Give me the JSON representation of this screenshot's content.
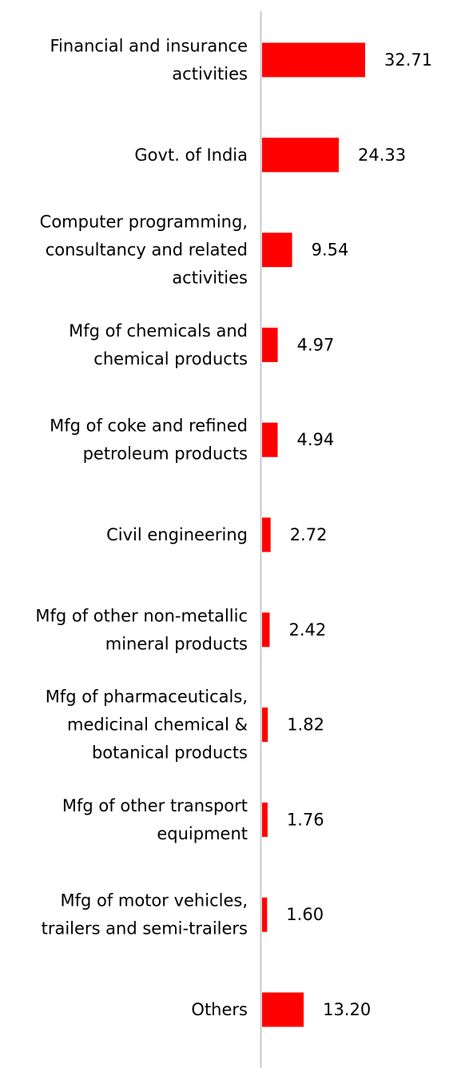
{
  "chart_data": {
    "type": "bar",
    "orientation": "horizontal",
    "title": "",
    "xlabel": "",
    "ylabel": "",
    "grid": false,
    "legend": "none",
    "bar_color": "#ff0000",
    "axis_color": "#c8c8c8",
    "categories": [
      [
        "Financial and insurance",
        "activities"
      ],
      [
        "Govt. of India"
      ],
      [
        "Computer programming,",
        "consultancy and related",
        "activities"
      ],
      [
        "Mfg of chemicals and",
        "chemical products"
      ],
      [
        "Mfg of coke and refined",
        "petroleum products"
      ],
      [
        "Civil engineering"
      ],
      [
        "Mfg of other non-metallic",
        "mineral products"
      ],
      [
        "Mfg of pharmaceuticals,",
        "medicinal chemical &",
        "botanical products"
      ],
      [
        "Mfg of other transport",
        "equipment"
      ],
      [
        "Mfg of motor vehicles,",
        "trailers and semi-trailers"
      ],
      [
        "Others"
      ]
    ],
    "values": [
      32.71,
      24.33,
      9.54,
      4.97,
      4.94,
      2.72,
      2.42,
      1.82,
      1.76,
      1.6,
      13.2
    ],
    "value_labels": [
      "32.71",
      "24.33",
      "9.54",
      "4.97",
      "4.94",
      "2.72",
      "2.42",
      "1.82",
      "1.76",
      "1.60",
      "13.20"
    ],
    "xlim": [
      0,
      32.71
    ]
  }
}
